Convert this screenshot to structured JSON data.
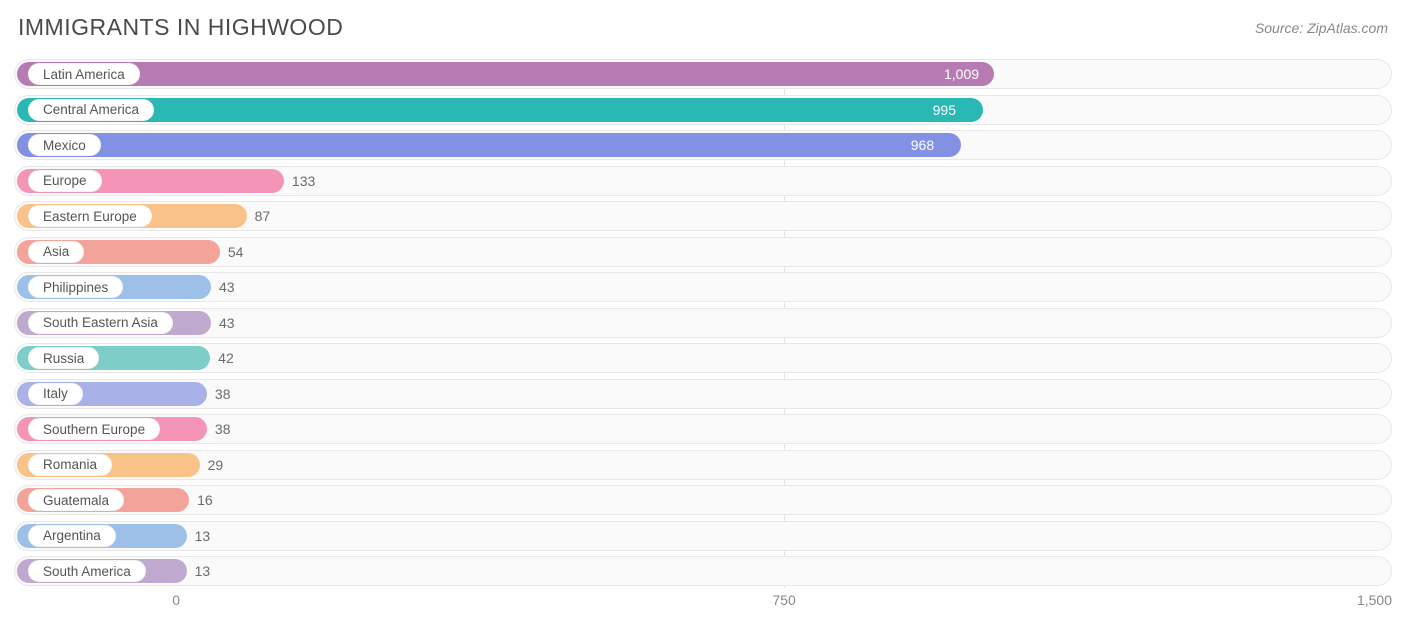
{
  "title": "IMMIGRANTS IN HIGHWOOD",
  "source": "Source: ZipAtlas.com",
  "chart": {
    "type": "bar-horizontal",
    "xmin": -200,
    "xmax": 1500,
    "ticks": [
      0,
      750,
      1500
    ],
    "tick_labels": [
      "0",
      "750",
      "1,500"
    ],
    "track_border": "#e8e8e8",
    "track_bg": "#fafafa",
    "value_color": "#6b6b6b",
    "title_color": "#4a4a4a",
    "rows": [
      {
        "label": "Latin America",
        "value": 1009,
        "display": "1,009",
        "color": "#b77bb4"
      },
      {
        "label": "Central America",
        "value": 995,
        "display": "995",
        "color": "#29b8b4"
      },
      {
        "label": "Mexico",
        "value": 968,
        "display": "968",
        "color": "#8391e4"
      },
      {
        "label": "Europe",
        "value": 133,
        "display": "133",
        "color": "#f495b7"
      },
      {
        "label": "Eastern Europe",
        "value": 87,
        "display": "87",
        "color": "#f8c288"
      },
      {
        "label": "Asia",
        "value": 54,
        "display": "54",
        "color": "#f2a49a"
      },
      {
        "label": "Philippines",
        "value": 43,
        "display": "43",
        "color": "#9cc0e7"
      },
      {
        "label": "South Eastern Asia",
        "value": 43,
        "display": "43",
        "color": "#c0a9cf"
      },
      {
        "label": "Russia",
        "value": 42,
        "display": "42",
        "color": "#7fcdc9"
      },
      {
        "label": "Italy",
        "value": 38,
        "display": "38",
        "color": "#a9b2e8"
      },
      {
        "label": "Southern Europe",
        "value": 38,
        "display": "38",
        "color": "#f495b7"
      },
      {
        "label": "Romania",
        "value": 29,
        "display": "29",
        "color": "#f8c288"
      },
      {
        "label": "Guatemala",
        "value": 16,
        "display": "16",
        "color": "#f2a49a"
      },
      {
        "label": "Argentina",
        "value": 13,
        "display": "13",
        "color": "#9cc0e7"
      },
      {
        "label": "South America",
        "value": 13,
        "display": "13",
        "color": "#c0a9cf"
      }
    ]
  }
}
